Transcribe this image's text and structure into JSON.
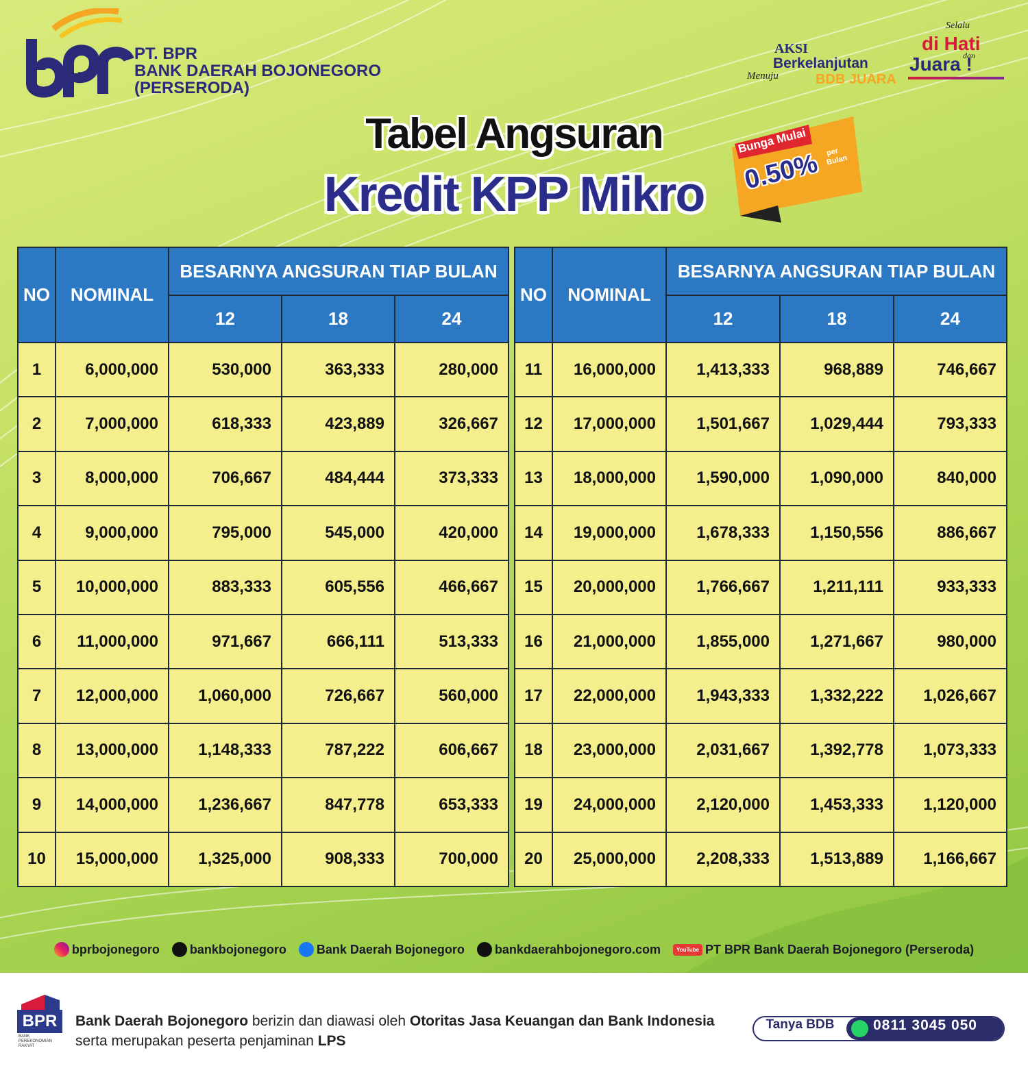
{
  "header": {
    "company": [
      "PT. BPR",
      "BANK DAERAH BOJONEGORO",
      "(PERSERODA)"
    ],
    "badge_aksi": {
      "line1": "AKSI",
      "line2": "Berkelanjutan",
      "script": "Menuju",
      "line3": "BDB JUARA"
    },
    "badge_juara": {
      "script_top": "Selalu",
      "line1": "di Hati",
      "script_mid": "dan",
      "line2": "Juara !"
    }
  },
  "title": {
    "line1": "Tabel Angsuran",
    "line2": "Kredit KPP Mikro"
  },
  "promo": {
    "label": "Bunga Mulai",
    "rate": "0.50%",
    "unit_top": "per",
    "unit_bottom": "Bulan"
  },
  "tables": [
    {
      "headers": {
        "no": "NO",
        "nominal": "NOMINAL",
        "group": "BESARNYA ANGSURAN TIAP BULAN",
        "tenors": [
          "12",
          "18",
          "24"
        ]
      },
      "rows": [
        [
          "1",
          "6,000,000",
          "530,000",
          "363,333",
          "280,000"
        ],
        [
          "2",
          "7,000,000",
          "618,333",
          "423,889",
          "326,667"
        ],
        [
          "3",
          "8,000,000",
          "706,667",
          "484,444",
          "373,333"
        ],
        [
          "4",
          "9,000,000",
          "795,000",
          "545,000",
          "420,000"
        ],
        [
          "5",
          "10,000,000",
          "883,333",
          "605,556",
          "466,667"
        ],
        [
          "6",
          "11,000,000",
          "971,667",
          "666,111",
          "513,333"
        ],
        [
          "7",
          "12,000,000",
          "1,060,000",
          "726,667",
          "560,000"
        ],
        [
          "8",
          "13,000,000",
          "1,148,333",
          "787,222",
          "606,667"
        ],
        [
          "9",
          "14,000,000",
          "1,236,667",
          "847,778",
          "653,333"
        ],
        [
          "10",
          "15,000,000",
          "1,325,000",
          "908,333",
          "700,000"
        ]
      ]
    },
    {
      "headers": {
        "no": "NO",
        "nominal": "NOMINAL",
        "group": "BESARNYA ANGSURAN TIAP BULAN",
        "tenors": [
          "12",
          "18",
          "24"
        ]
      },
      "rows": [
        [
          "11",
          "16,000,000",
          "1,413,333",
          "968,889",
          "746,667"
        ],
        [
          "12",
          "17,000,000",
          "1,501,667",
          "1,029,444",
          "793,333"
        ],
        [
          "13",
          "18,000,000",
          "1,590,000",
          "1,090,000",
          "840,000"
        ],
        [
          "14",
          "19,000,000",
          "1,678,333",
          "1,150,556",
          "886,667"
        ],
        [
          "15",
          "20,000,000",
          "1,766,667",
          "1,211,111",
          "933,333"
        ],
        [
          "16",
          "21,000,000",
          "1,855,000",
          "1,271,667",
          "980,000"
        ],
        [
          "17",
          "22,000,000",
          "1,943,333",
          "1,332,222",
          "1,026,667"
        ],
        [
          "18",
          "23,000,000",
          "2,031,667",
          "1,392,778",
          "1,073,333"
        ],
        [
          "19",
          "24,000,000",
          "2,120,000",
          "1,453,333",
          "1,120,000"
        ],
        [
          "20",
          "25,000,000",
          "2,208,333",
          "1,513,889",
          "1,166,667"
        ]
      ]
    }
  ],
  "social": [
    {
      "icon": "instagram",
      "handle": "bprbojonegoro"
    },
    {
      "icon": "tiktok",
      "handle": "bankbojonegoro"
    },
    {
      "icon": "facebook",
      "handle": "Bank Daerah Bojonegoro"
    },
    {
      "icon": "web",
      "handle": "bankdaerahbojonegoro.com"
    },
    {
      "icon": "youtube",
      "badge": "YouTube",
      "handle": "PT BPR Bank Daerah Bojonegoro (Perseroda)"
    }
  ],
  "footer": {
    "logo": {
      "abbr": "BPR",
      "sub": [
        "BANK",
        "PEREKONOMIAN",
        "RAKYAT"
      ]
    },
    "notice": [
      [
        {
          "text": "Bank Daerah Bojonegoro",
          "bold": true
        },
        {
          "text": " berizin dan diawasi oleh ",
          "bold": false
        },
        {
          "text": "Otoritas Jasa Keuangan dan Bank Indonesia",
          "bold": true
        }
      ],
      [
        {
          "text": "serta merupakan peserta penjaminan ",
          "bold": false
        },
        {
          "text": "LPS",
          "bold": true
        }
      ]
    ],
    "cta": {
      "label": "Tanya BDB",
      "phone": "0811 3045 050"
    }
  }
}
